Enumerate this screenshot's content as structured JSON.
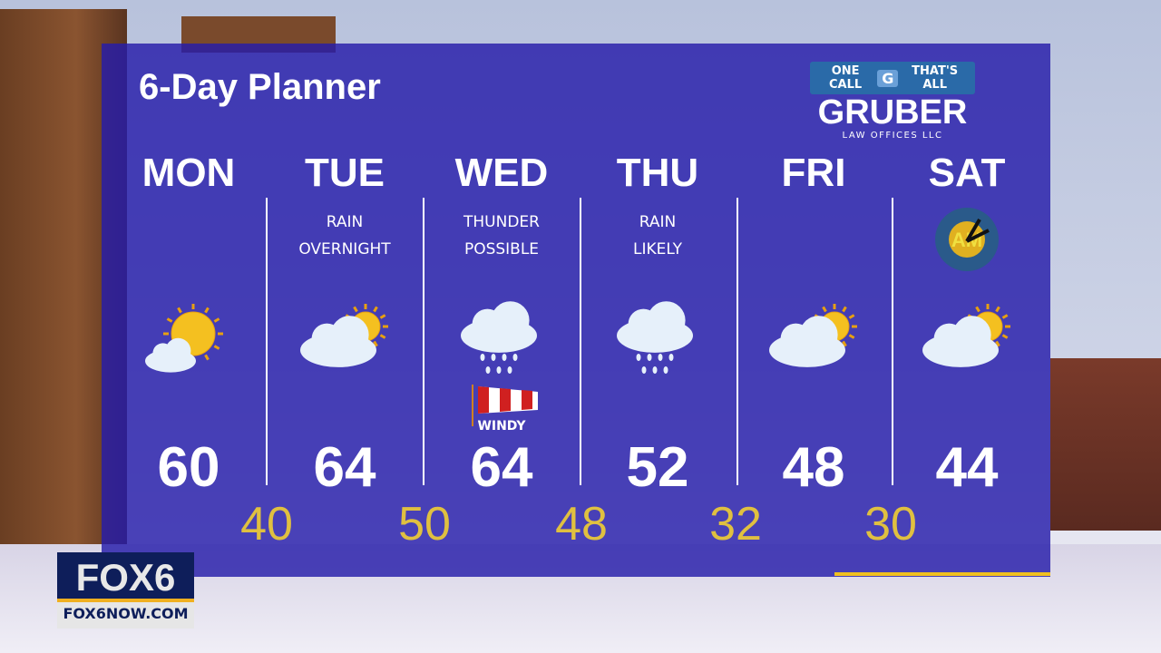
{
  "title": "6-Day Planner",
  "sponsor": {
    "tagline_left": "ONE CALL",
    "tagline_mark": "G",
    "tagline_right": "THAT'S ALL",
    "name": "GRUBER",
    "subtitle": "LAW OFFICES LLC"
  },
  "days": [
    {
      "day": "MON",
      "note": [
        "",
        ""
      ],
      "icon": "partly-sunny-icon",
      "high": "60",
      "low": "40"
    },
    {
      "day": "TUE",
      "note": [
        "RAIN",
        "OVERNIGHT"
      ],
      "icon": "cloudy-sun-icon",
      "high": "64",
      "low": "50"
    },
    {
      "day": "WED",
      "note": [
        "THUNDER",
        "POSSIBLE"
      ],
      "icon": "rain-cloud-icon",
      "extra": "WINDY",
      "high": "64",
      "low": "48"
    },
    {
      "day": "THU",
      "note": [
        "RAIN",
        "LIKELY"
      ],
      "icon": "rain-cloud-icon",
      "high": "52",
      "low": "32"
    },
    {
      "day": "FRI",
      "note": [
        "",
        ""
      ],
      "icon": "cloudy-sun-icon",
      "high": "48",
      "low": "30"
    },
    {
      "day": "SAT",
      "note": [
        "",
        ""
      ],
      "icon": "cloudy-sun-icon",
      "badge": "AM",
      "high": "44"
    }
  ],
  "station": {
    "logo": "FOX6",
    "url": "FOX6NOW.COM"
  },
  "colors": {
    "panel": "#261caa",
    "low_temp": "#e0c040",
    "accent": "#f0c020"
  }
}
